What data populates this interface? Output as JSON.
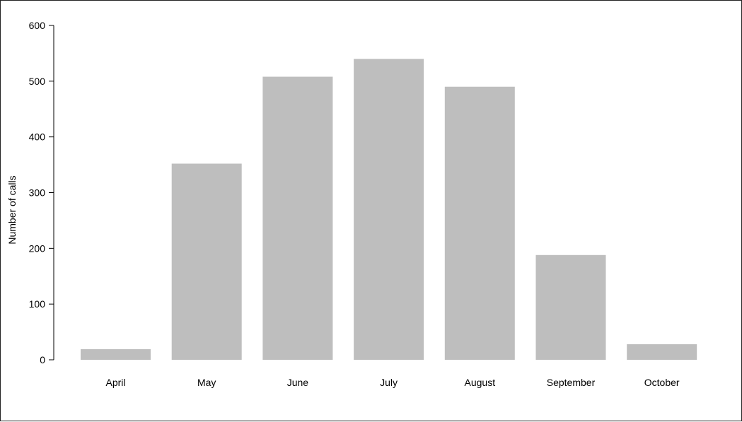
{
  "chart_data": {
    "type": "bar",
    "title": "",
    "xlabel": "",
    "ylabel": "Number of calls",
    "categories": [
      "April",
      "May",
      "June",
      "July",
      "August",
      "September",
      "October"
    ],
    "values": [
      19,
      352,
      508,
      540,
      490,
      188,
      28
    ],
    "ylim": [
      0,
      600
    ],
    "yticks": [
      0,
      100,
      200,
      300,
      400,
      500,
      600
    ],
    "grid": false,
    "legend": "none",
    "bar_color": "#bebebe"
  }
}
